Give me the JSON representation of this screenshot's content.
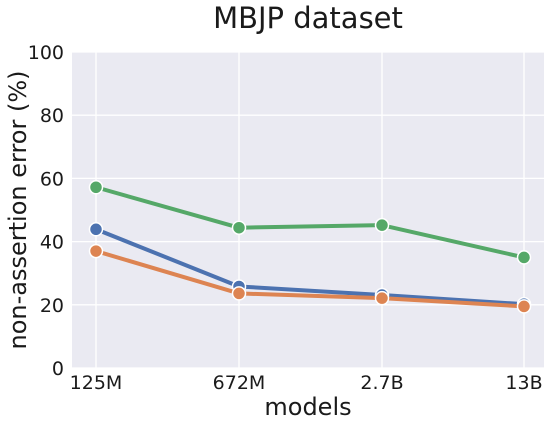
{
  "chart_data": {
    "type": "line",
    "title": "MBJP dataset",
    "xlabel": "models",
    "ylabel": "non-assertion error (%)",
    "categories": [
      "125M",
      "672M",
      "2.7B",
      "13B"
    ],
    "ylim": [
      0,
      100
    ],
    "yticks": [
      0,
      20,
      40,
      60,
      80,
      100
    ],
    "grid": true,
    "legend": "none",
    "series": [
      {
        "color": "#55a868",
        "values": [
          57.2,
          44.4,
          45.2,
          35.0
        ]
      },
      {
        "color": "#4c72b0",
        "values": [
          43.9,
          25.8,
          23.1,
          20.2
        ]
      },
      {
        "color": "#dd8452",
        "values": [
          37.0,
          23.6,
          22.1,
          19.5
        ]
      }
    ]
  }
}
